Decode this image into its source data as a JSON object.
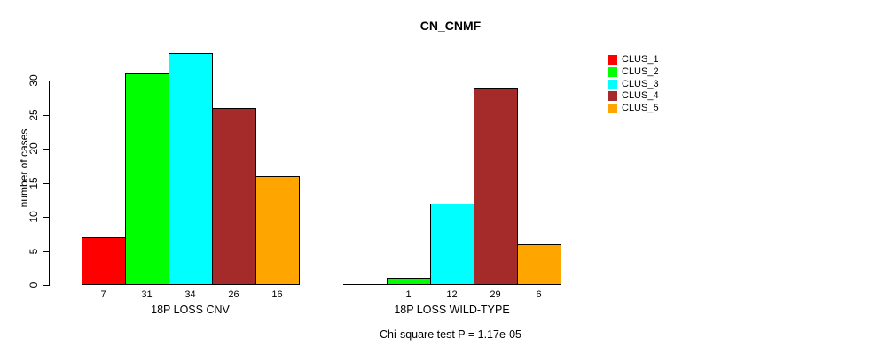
{
  "chart_data": {
    "type": "bar",
    "title": "CN_CNMF",
    "ylabel": "number of cases",
    "categories": [
      "18P LOSS CNV",
      "18P LOSS WILD-TYPE"
    ],
    "series": [
      {
        "name": "CLUS_1",
        "color": "#FF0000",
        "values": [
          7,
          0
        ]
      },
      {
        "name": "CLUS_2",
        "color": "#00FF00",
        "values": [
          31,
          1
        ]
      },
      {
        "name": "CLUS_3",
        "color": "#00FFFF",
        "values": [
          34,
          12
        ]
      },
      {
        "name": "CLUS_4",
        "color": "#A52A2A",
        "values": [
          26,
          29
        ]
      },
      {
        "name": "CLUS_5",
        "color": "#FFA500",
        "values": [
          16,
          6
        ]
      }
    ],
    "bar_labels": [
      [
        "7",
        "31",
        "34",
        "26",
        "16"
      ],
      [
        "",
        "1",
        "12",
        "29",
        "6"
      ]
    ],
    "yticks": [
      0,
      5,
      10,
      15,
      20,
      25,
      30
    ],
    "ylim": [
      0,
      34
    ],
    "grid": false,
    "legend_position": "right",
    "annotation": "Chi-square test P = 1.17e-05"
  }
}
